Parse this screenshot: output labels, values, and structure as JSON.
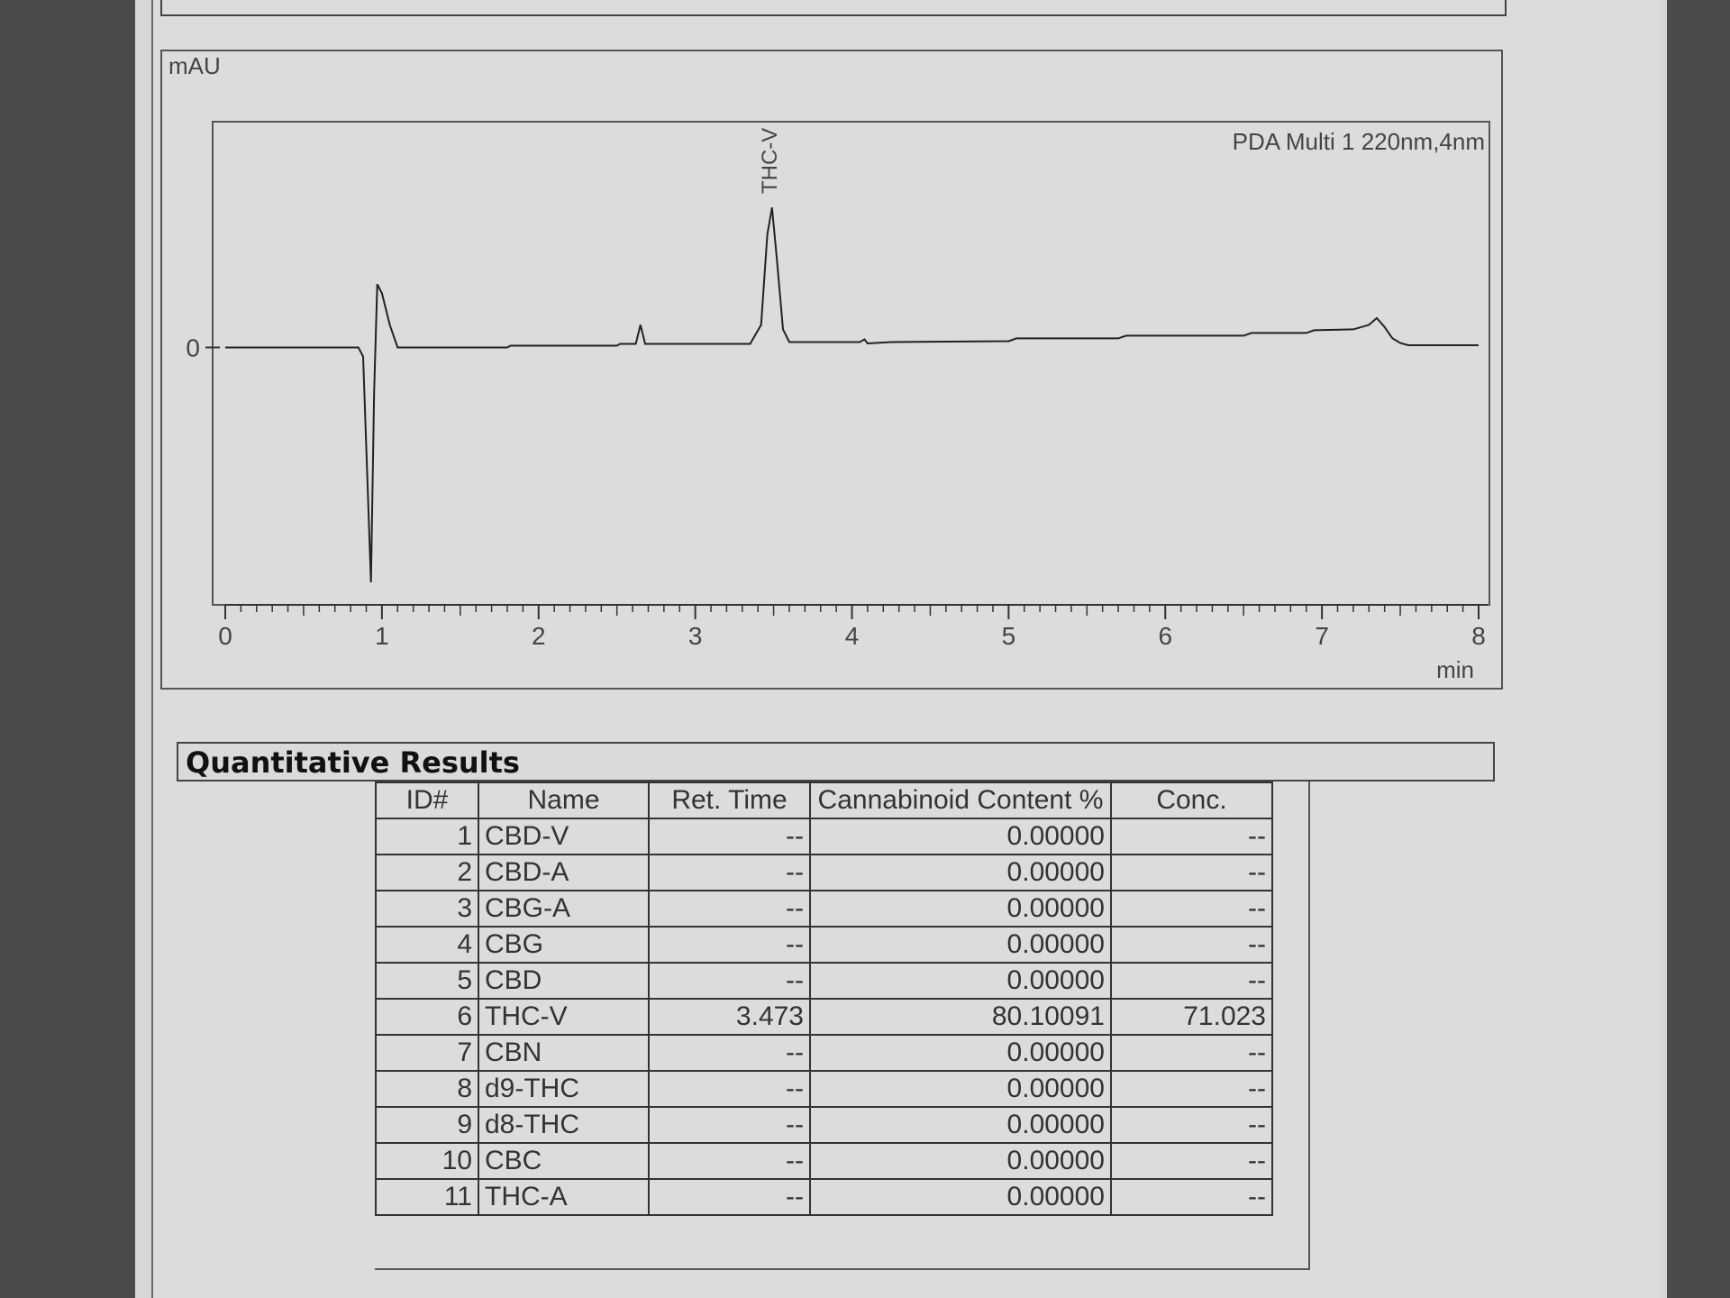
{
  "chart_data": {
    "type": "line",
    "ylabel": "mAU",
    "xlabel": "min",
    "legend": "PDA Multi 1 220nm,4nm",
    "legend_position": "top-right",
    "xlim": [
      0,
      8
    ],
    "x_ticks": [
      "0",
      "1",
      "2",
      "3",
      "4",
      "5",
      "6",
      "7",
      "8"
    ],
    "y_ticks": [
      "0"
    ],
    "ylim": [
      -57,
      50
    ],
    "grid": false,
    "line_color": "#222222",
    "peak_labels": [
      {
        "label": "THC-V",
        "x": 3.473
      }
    ],
    "series": [
      {
        "x": [
          0,
          0.85,
          0.88,
          0.93,
          0.95,
          0.97,
          1.0,
          1.05,
          1.1,
          1.8,
          1.82,
          2.5,
          2.52,
          2.62,
          2.65,
          2.68,
          2.7,
          3.35,
          3.42,
          3.46,
          3.49,
          3.52,
          3.56,
          3.6,
          4.05,
          4.08,
          4.1,
          4.25,
          5.0,
          5.05,
          5.7,
          5.75,
          6.5,
          6.55,
          6.9,
          6.95,
          7.2,
          7.3,
          7.35,
          7.4,
          7.45,
          7.5,
          7.55,
          8.0
        ],
        "y": [
          0,
          0,
          -2,
          -52,
          -10,
          14,
          12,
          5,
          0,
          0,
          0.4,
          0.4,
          0.8,
          0.8,
          5,
          0.8,
          0.8,
          0.8,
          5,
          25,
          31,
          20,
          4,
          1.2,
          1.2,
          1.8,
          0.9,
          1.2,
          1.4,
          2,
          2,
          2.6,
          2.6,
          3.2,
          3.2,
          3.8,
          4,
          5,
          6.5,
          4.5,
          2,
          1,
          0.5,
          0.5
        ]
      }
    ]
  },
  "results": {
    "title": "Quantitative Results",
    "columns": [
      "ID#",
      "Name",
      "Ret. Time",
      "Cannabinoid Content %",
      "Conc."
    ],
    "rows": [
      [
        "1",
        "CBD-V",
        "--",
        "0.00000",
        "--"
      ],
      [
        "2",
        "CBD-A",
        "--",
        "0.00000",
        "--"
      ],
      [
        "3",
        "CBG-A",
        "--",
        "0.00000",
        "--"
      ],
      [
        "4",
        "CBG",
        "--",
        "0.00000",
        "--"
      ],
      [
        "5",
        "CBD",
        "--",
        "0.00000",
        "--"
      ],
      [
        "6",
        "THC-V",
        "3.473",
        "80.10091",
        "71.023"
      ],
      [
        "7",
        "CBN",
        "--",
        "0.00000",
        "--"
      ],
      [
        "8",
        "d9-THC",
        "--",
        "0.00000",
        "--"
      ],
      [
        "9",
        "d8-THC",
        "--",
        "0.00000",
        "--"
      ],
      [
        "10",
        "CBC",
        "--",
        "0.00000",
        "--"
      ],
      [
        "11",
        "THC-A",
        "--",
        "0.00000",
        "--"
      ]
    ]
  }
}
